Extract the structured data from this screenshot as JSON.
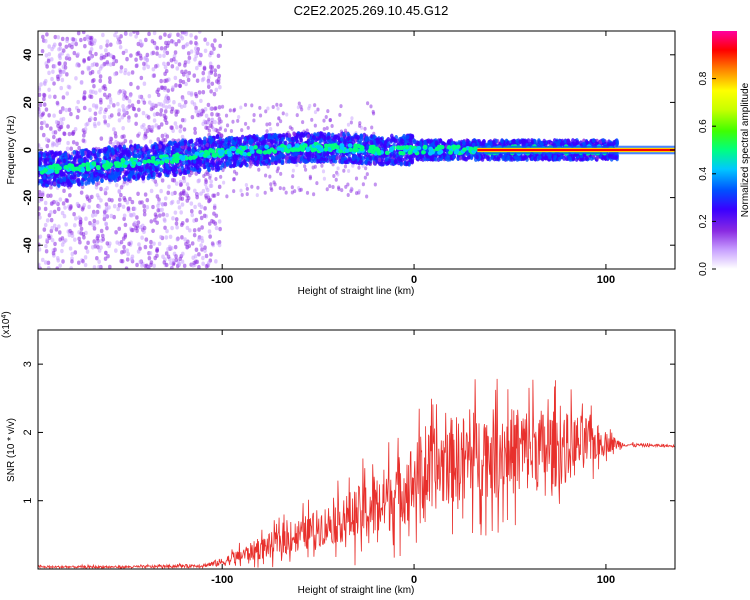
{
  "figure": {
    "title": "C2E2.2025.269.10.45.G12"
  },
  "colors": {
    "snr_line": "#e8302c",
    "frame": "#000000",
    "background": "#ffffff"
  },
  "chart_data": [
    {
      "type": "heatmap",
      "name": "spectrogram",
      "xlabel": "Height of straight line (km)",
      "ylabel": "Frequency (Hz)",
      "xlim": [
        -196,
        136
      ],
      "ylim": [
        -50,
        50
      ],
      "x_ticks": [
        -100,
        0,
        100
      ],
      "x_tick_labels": [
        "-100",
        "0",
        "100"
      ],
      "y_ticks": [
        -40,
        -20,
        0,
        20,
        40
      ],
      "y_tick_labels": [
        "-40",
        "-20",
        "0",
        "20",
        "40"
      ],
      "ridge": {
        "description": "dominant frequency trace vs height",
        "x": [
          -196,
          -180,
          -160,
          -140,
          -120,
          -100,
          -80,
          -60,
          -40,
          -20,
          0,
          20,
          40,
          60,
          80,
          100,
          136
        ],
        "y": [
          -8,
          -8,
          -6,
          -5,
          -3,
          -1,
          0,
          1,
          1,
          0,
          0,
          0,
          0,
          0,
          0,
          0,
          0
        ]
      },
      "colorbar": {
        "label": "Normalized spectral amplitude",
        "range": [
          0,
          1
        ],
        "ticks": [
          0.0,
          0.2,
          0.4,
          0.6,
          0.8
        ],
        "tick_labels": [
          "0.0",
          "0.2",
          "0.4",
          "0.6",
          "0.8"
        ],
        "colormap": [
          "#ffffff",
          "#c8a0ff",
          "#8a2be2",
          "#3a00ff",
          "#0050ff",
          "#00c8ff",
          "#00ff80",
          "#40ff00",
          "#c8ff00",
          "#ffff00",
          "#ff8000",
          "#ff0000",
          "#ff00a0"
        ]
      }
    },
    {
      "type": "line",
      "name": "snr",
      "xlabel": "Height of straight line (km)",
      "ylabel": "SNR (10 * v/v)",
      "y_multiplier": "(x10",
      "y_multiplier_exp": "4",
      "y_multiplier_close": ")",
      "xlim": [
        -196,
        136
      ],
      "ylim": [
        0,
        3.5
      ],
      "x_ticks": [
        -100,
        0,
        100
      ],
      "x_tick_labels": [
        "-100",
        "0",
        "100"
      ],
      "y_ticks": [
        1,
        2,
        3
      ],
      "y_tick_labels": [
        "1",
        "2",
        "3"
      ],
      "series": [
        {
          "name": "SNR",
          "x": [
            -196,
            -150,
            -110,
            -100,
            -80,
            -60,
            -40,
            -20,
            0,
            20,
            40,
            60,
            75,
            90,
            100,
            110,
            136
          ],
          "y": [
            0.03,
            0.03,
            0.05,
            0.1,
            0.3,
            0.5,
            0.7,
            0.9,
            1.3,
            1.6,
            1.7,
            1.75,
            1.75,
            1.85,
            1.85,
            1.82,
            1.8
          ],
          "spread": [
            0.02,
            0.02,
            0.03,
            0.08,
            0.2,
            0.3,
            0.4,
            0.6,
            0.7,
            0.8,
            0.8,
            0.8,
            0.7,
            0.5,
            0.2,
            0.03,
            0.02
          ]
        }
      ]
    }
  ]
}
